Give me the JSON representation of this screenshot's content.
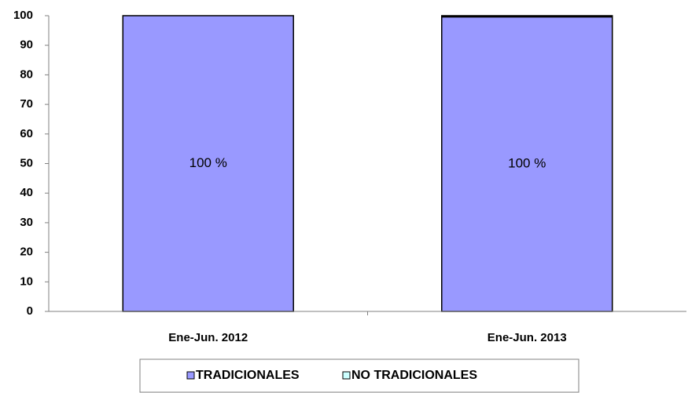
{
  "chart_data": {
    "type": "stacked_bar",
    "categories": [
      "Ene-Jun. 2012",
      "Ene-Jun. 2013"
    ],
    "series": [
      {
        "name": "TRADICIONALES",
        "color": "#9999ff",
        "values": [
          100,
          99.6
        ],
        "value_labels": [
          "100 %",
          "100 %"
        ]
      },
      {
        "name": "NO TRADICIONALES",
        "color": "#ccffff",
        "values": [
          0,
          0.4
        ]
      }
    ],
    "ylim": [
      0,
      100
    ],
    "yticks": [
      0,
      10,
      20,
      30,
      40,
      50,
      60,
      70,
      80,
      90,
      100
    ],
    "legend": "bottom"
  }
}
